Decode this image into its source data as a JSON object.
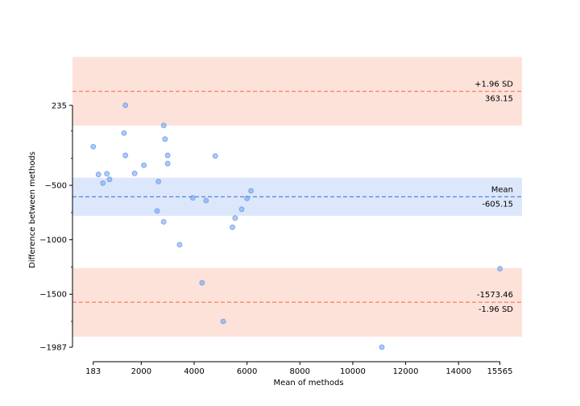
{
  "chart_data": {
    "type": "scatter",
    "title": "",
    "xlabel": "Mean of methods",
    "ylabel": "Difference between methods",
    "xlim": [
      -600,
      16400
    ],
    "ylim": [
      -2120,
      670
    ],
    "x_ticks": [
      {
        "value": 183,
        "label": "183"
      },
      {
        "value": 2000,
        "label": "2000"
      },
      {
        "value": 4000,
        "label": "4000"
      },
      {
        "value": 6000,
        "label": "6000"
      },
      {
        "value": 8000,
        "label": "8000"
      },
      {
        "value": 10000,
        "label": "10000"
      },
      {
        "value": 12000,
        "label": "12000"
      },
      {
        "value": 14000,
        "label": "14000"
      },
      {
        "value": 15565,
        "label": "15565"
      }
    ],
    "y_ticks": [
      {
        "value": 235,
        "label": "235"
      },
      {
        "value": -500,
        "label": "−500"
      },
      {
        "value": -1000,
        "label": "−1000"
      },
      {
        "value": -1500,
        "label": "−1500"
      },
      {
        "value": -1987,
        "label": "−1987"
      }
    ],
    "y_minor_ticks": [
      0,
      -250,
      -750,
      -1250,
      -1750
    ],
    "mean": {
      "value": -605.15,
      "label": "Mean",
      "value_label": "-605.15",
      "band": [
        -780,
        -430
      ]
    },
    "upper_loa": {
      "value": 363.15,
      "label": "+1.96 SD",
      "value_label": "363.15",
      "band": [
        50,
        680
      ]
    },
    "lower_loa": {
      "value": -1573.46,
      "label": "-1.96 SD",
      "value_label": "-1573.46",
      "band": [
        -1890,
        -1260
      ]
    },
    "colors": {
      "points": "#6d9eeb",
      "mean_line": "#5b8fd6",
      "mean_band": "#dde7fb",
      "loa_line": "#f08a70",
      "loa_band": "#fde2da"
    },
    "points": [
      {
        "x": 183,
        "y": -145
      },
      {
        "x": 383,
        "y": -400
      },
      {
        "x": 550,
        "y": -480
      },
      {
        "x": 700,
        "y": -393
      },
      {
        "x": 800,
        "y": -445
      },
      {
        "x": 1350,
        "y": -20
      },
      {
        "x": 1400,
        "y": -225
      },
      {
        "x": 1400,
        "y": 235
      },
      {
        "x": 1750,
        "y": -390
      },
      {
        "x": 2100,
        "y": -315
      },
      {
        "x": 2600,
        "y": -735
      },
      {
        "x": 2650,
        "y": -465
      },
      {
        "x": 2850,
        "y": 50
      },
      {
        "x": 2850,
        "y": -835
      },
      {
        "x": 2900,
        "y": -75
      },
      {
        "x": 3000,
        "y": -225
      },
      {
        "x": 3000,
        "y": -300
      },
      {
        "x": 3450,
        "y": -1045
      },
      {
        "x": 3950,
        "y": -615
      },
      {
        "x": 4300,
        "y": -1395
      },
      {
        "x": 4450,
        "y": -640
      },
      {
        "x": 4800,
        "y": -230
      },
      {
        "x": 5100,
        "y": -1750
      },
      {
        "x": 5450,
        "y": -885
      },
      {
        "x": 5550,
        "y": -800
      },
      {
        "x": 5800,
        "y": -720
      },
      {
        "x": 6000,
        "y": -620
      },
      {
        "x": 6150,
        "y": -550
      },
      {
        "x": 11100,
        "y": -1987
      },
      {
        "x": 15565,
        "y": -1265
      }
    ]
  }
}
